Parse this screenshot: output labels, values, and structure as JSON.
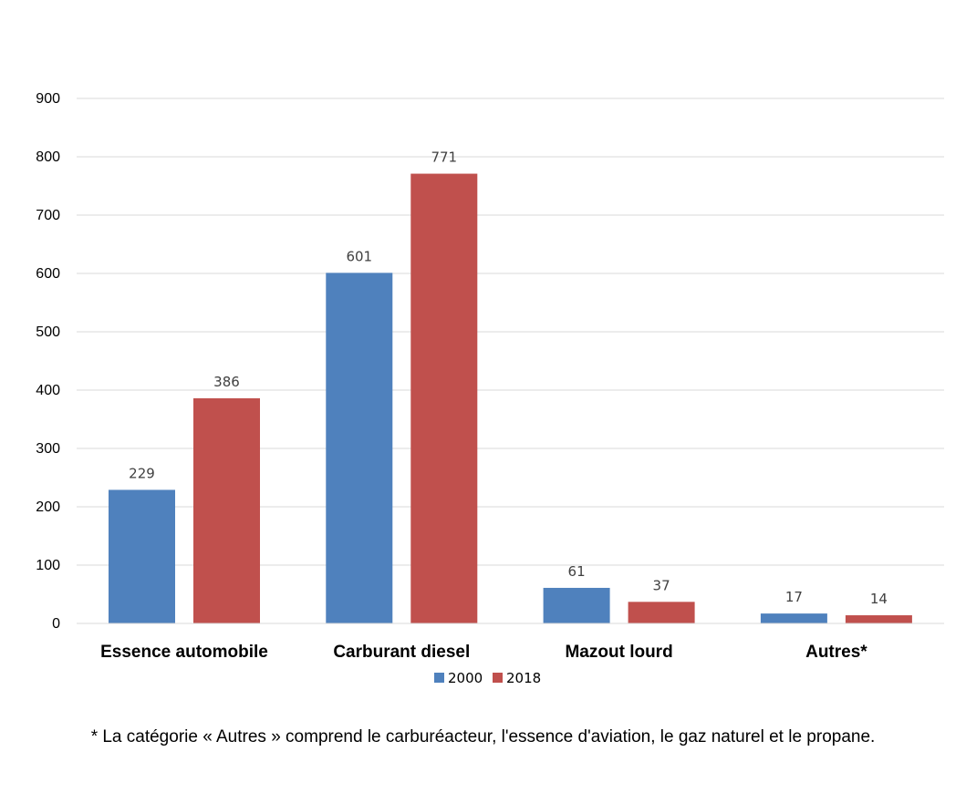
{
  "chart_data": {
    "type": "bar",
    "title": "",
    "xlabel": "",
    "ylabel": "",
    "categories": [
      "Essence automobile",
      "Carburant diesel",
      "Mazout lourd",
      "Autres*"
    ],
    "series": [
      {
        "name": "2000",
        "values": [
          229,
          601,
          61,
          17
        ],
        "color": "#4F81BD"
      },
      {
        "name": "2018",
        "values": [
          386,
          771,
          37,
          14
        ],
        "color": "#C0504D"
      }
    ],
    "ylim": [
      0,
      900
    ],
    "yticks": [
      0,
      100,
      200,
      300,
      400,
      500,
      600,
      700,
      800,
      900
    ],
    "grid": true,
    "legend": "bottom-center",
    "data_labels": true
  },
  "footnote": "* La catégorie « Autres » comprend le carburéacteur, l'essence d'aviation, le gaz naturel et le propane."
}
